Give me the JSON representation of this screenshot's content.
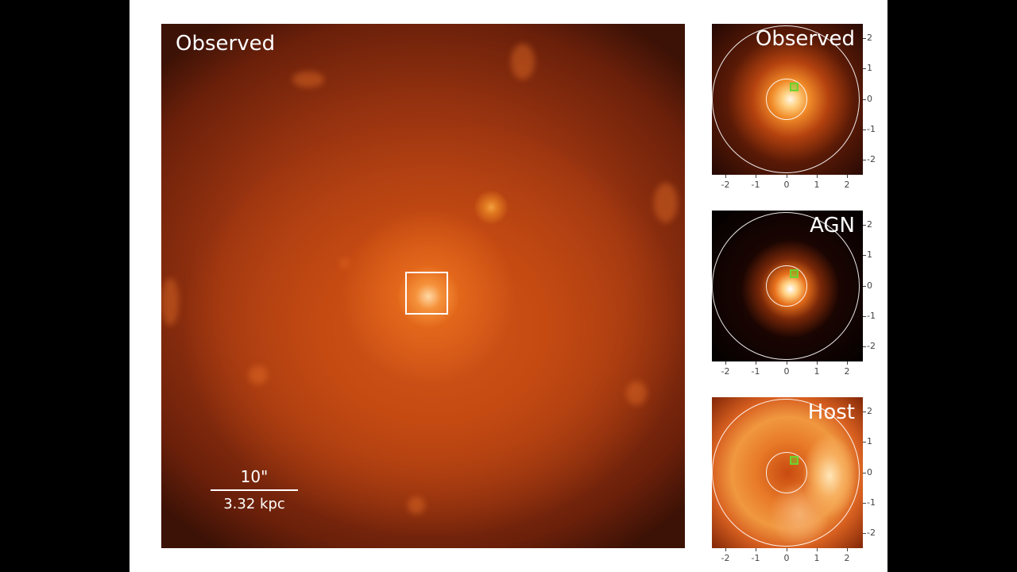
{
  "main": {
    "title": "Observed",
    "scale_top": "10\"",
    "scale_bottom": "3.32 kpc"
  },
  "insets": [
    {
      "title": "Observed"
    },
    {
      "title": "AGN"
    },
    {
      "title": "Host"
    }
  ],
  "axis": {
    "x_ticks": [
      "-2",
      "-1",
      "0",
      "1",
      "2"
    ],
    "y_ticks": [
      "2",
      "1",
      "0",
      "-1",
      "-2"
    ]
  }
}
